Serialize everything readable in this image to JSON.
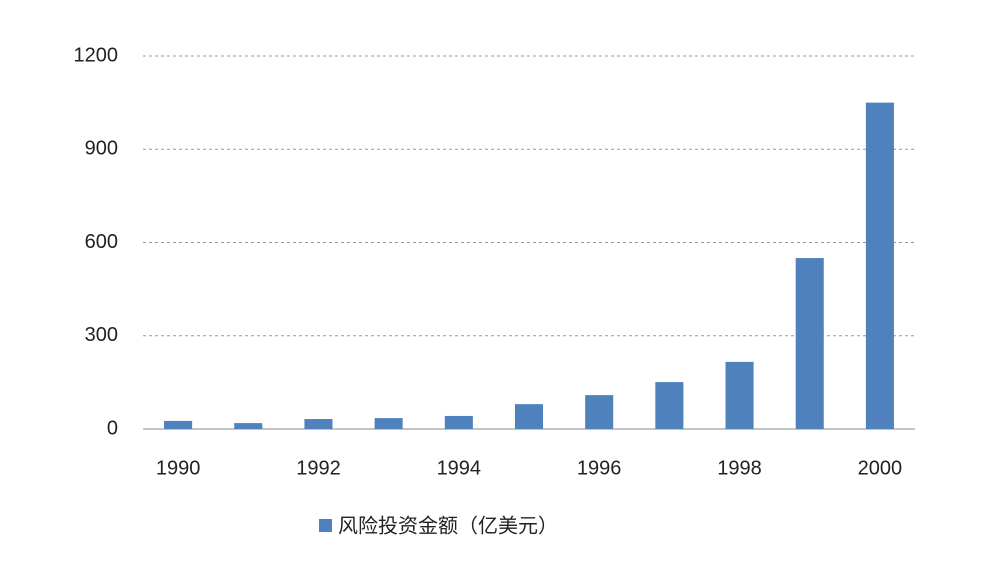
{
  "chart_data": {
    "type": "bar",
    "categories": [
      "1990",
      null,
      "1992",
      null,
      "1994",
      null,
      "1996",
      null,
      "1998",
      null,
      "2000"
    ],
    "series": [
      {
        "name": "风险投资金额（亿美元）",
        "color": "#4f81bd",
        "values": [
          26,
          19,
          32,
          35,
          42,
          80,
          109,
          151,
          216,
          550,
          1050
        ]
      }
    ],
    "ylim": [
      0,
      1200
    ],
    "yticks": [
      0,
      300,
      600,
      900,
      1200
    ],
    "grid": true,
    "legend": "bottom"
  }
}
